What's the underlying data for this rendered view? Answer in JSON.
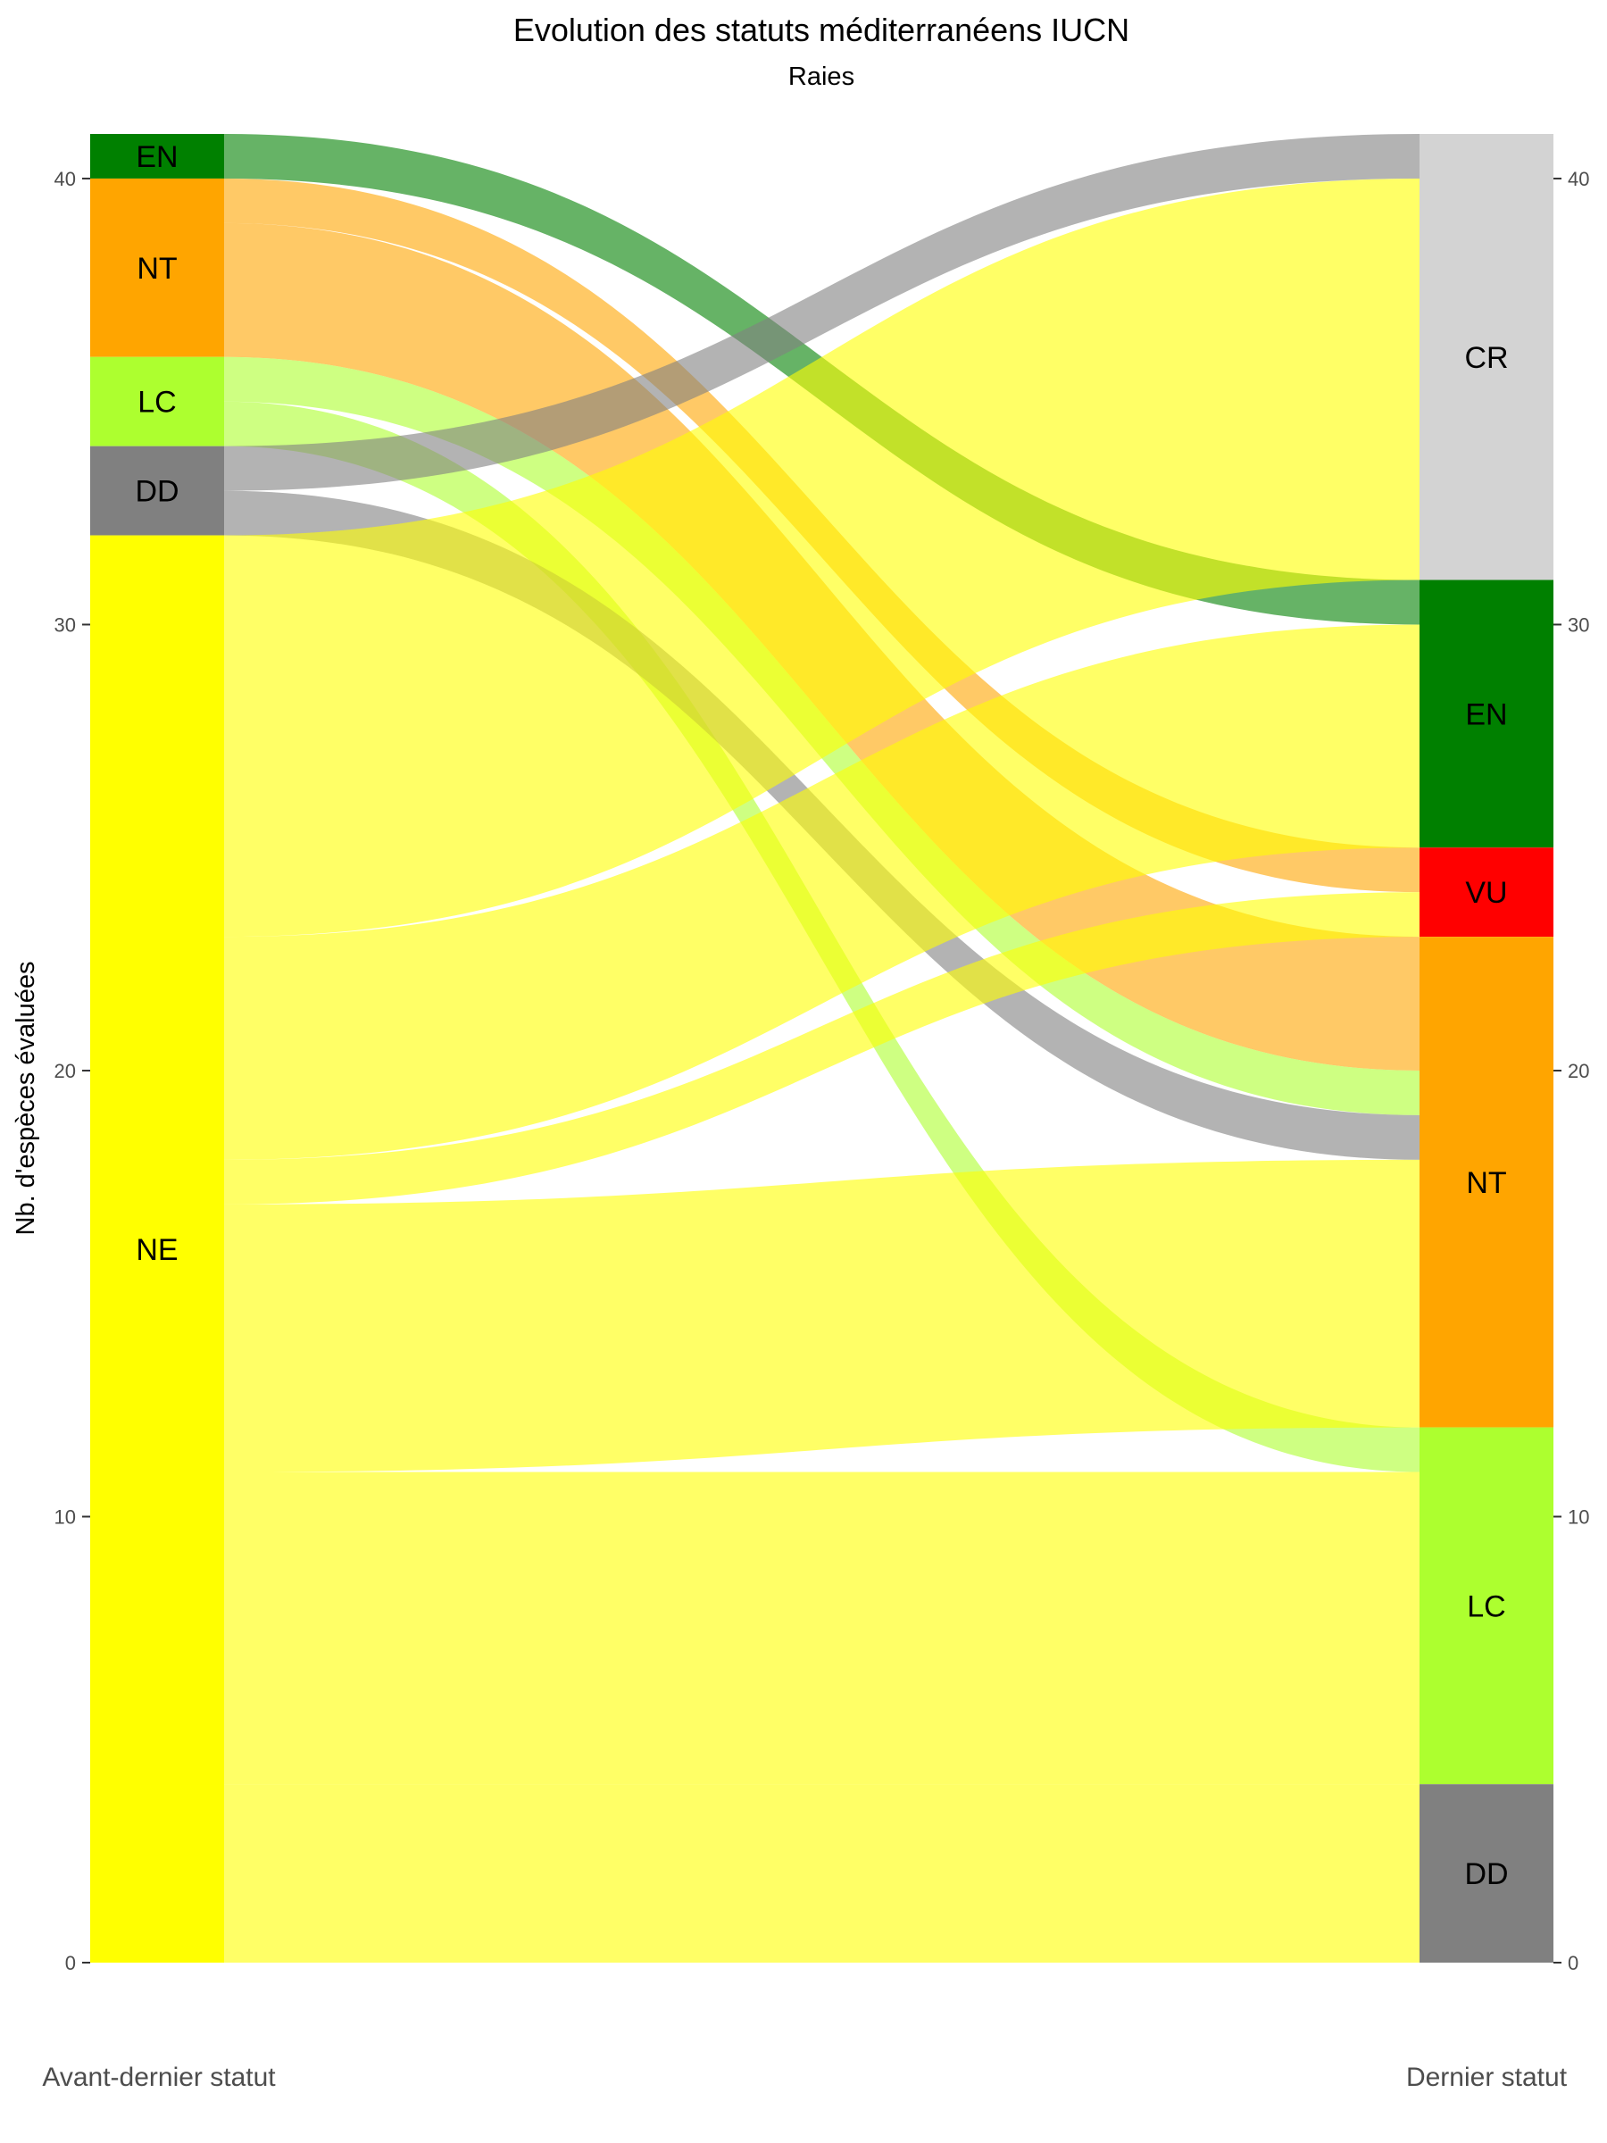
{
  "chart_data": {
    "type": "alluvial",
    "title": "Evolution des statuts méditerranéens IUCN",
    "subtitle": "Raies",
    "ylabel": "Nb. d'espèces évaluées",
    "ylim": [
      0,
      41
    ],
    "yticks": [
      0,
      10,
      20,
      30,
      40
    ],
    "axes": [
      "Avant-dernier statut",
      "Dernier statut"
    ],
    "colors": {
      "CR": "#d3d3d3",
      "EN": "#008000",
      "VU": "#ff0000",
      "NT": "#ffa500",
      "LC": "#adff2f",
      "DD": "#808080",
      "NE": "#ffff00"
    },
    "left_nodes": [
      {
        "label": "EN",
        "value": 1
      },
      {
        "label": "NT",
        "value": 4
      },
      {
        "label": "LC",
        "value": 2
      },
      {
        "label": "DD",
        "value": 2
      },
      {
        "label": "NE",
        "value": 32
      }
    ],
    "right_nodes": [
      {
        "label": "CR",
        "value": 10
      },
      {
        "label": "EN",
        "value": 6
      },
      {
        "label": "VU",
        "value": 2
      },
      {
        "label": "NT",
        "value": 11
      },
      {
        "label": "LC",
        "value": 8
      },
      {
        "label": "DD",
        "value": 4
      }
    ],
    "flows": [
      {
        "from": "EN",
        "to": "EN",
        "value": 1
      },
      {
        "from": "NT",
        "to": "VU",
        "value": 1
      },
      {
        "from": "NT",
        "to": "NT",
        "value": 3
      },
      {
        "from": "LC",
        "to": "NT",
        "value": 1
      },
      {
        "from": "LC",
        "to": "LC",
        "value": 1
      },
      {
        "from": "DD",
        "to": "CR",
        "value": 1
      },
      {
        "from": "DD",
        "to": "NT",
        "value": 1
      },
      {
        "from": "NE",
        "to": "CR",
        "value": 9
      },
      {
        "from": "NE",
        "to": "EN",
        "value": 5
      },
      {
        "from": "NE",
        "to": "VU",
        "value": 1
      },
      {
        "from": "NE",
        "to": "NT",
        "value": 6
      },
      {
        "from": "NE",
        "to": "LC",
        "value": 7
      },
      {
        "from": "NE",
        "to": "DD",
        "value": 4
      }
    ]
  }
}
